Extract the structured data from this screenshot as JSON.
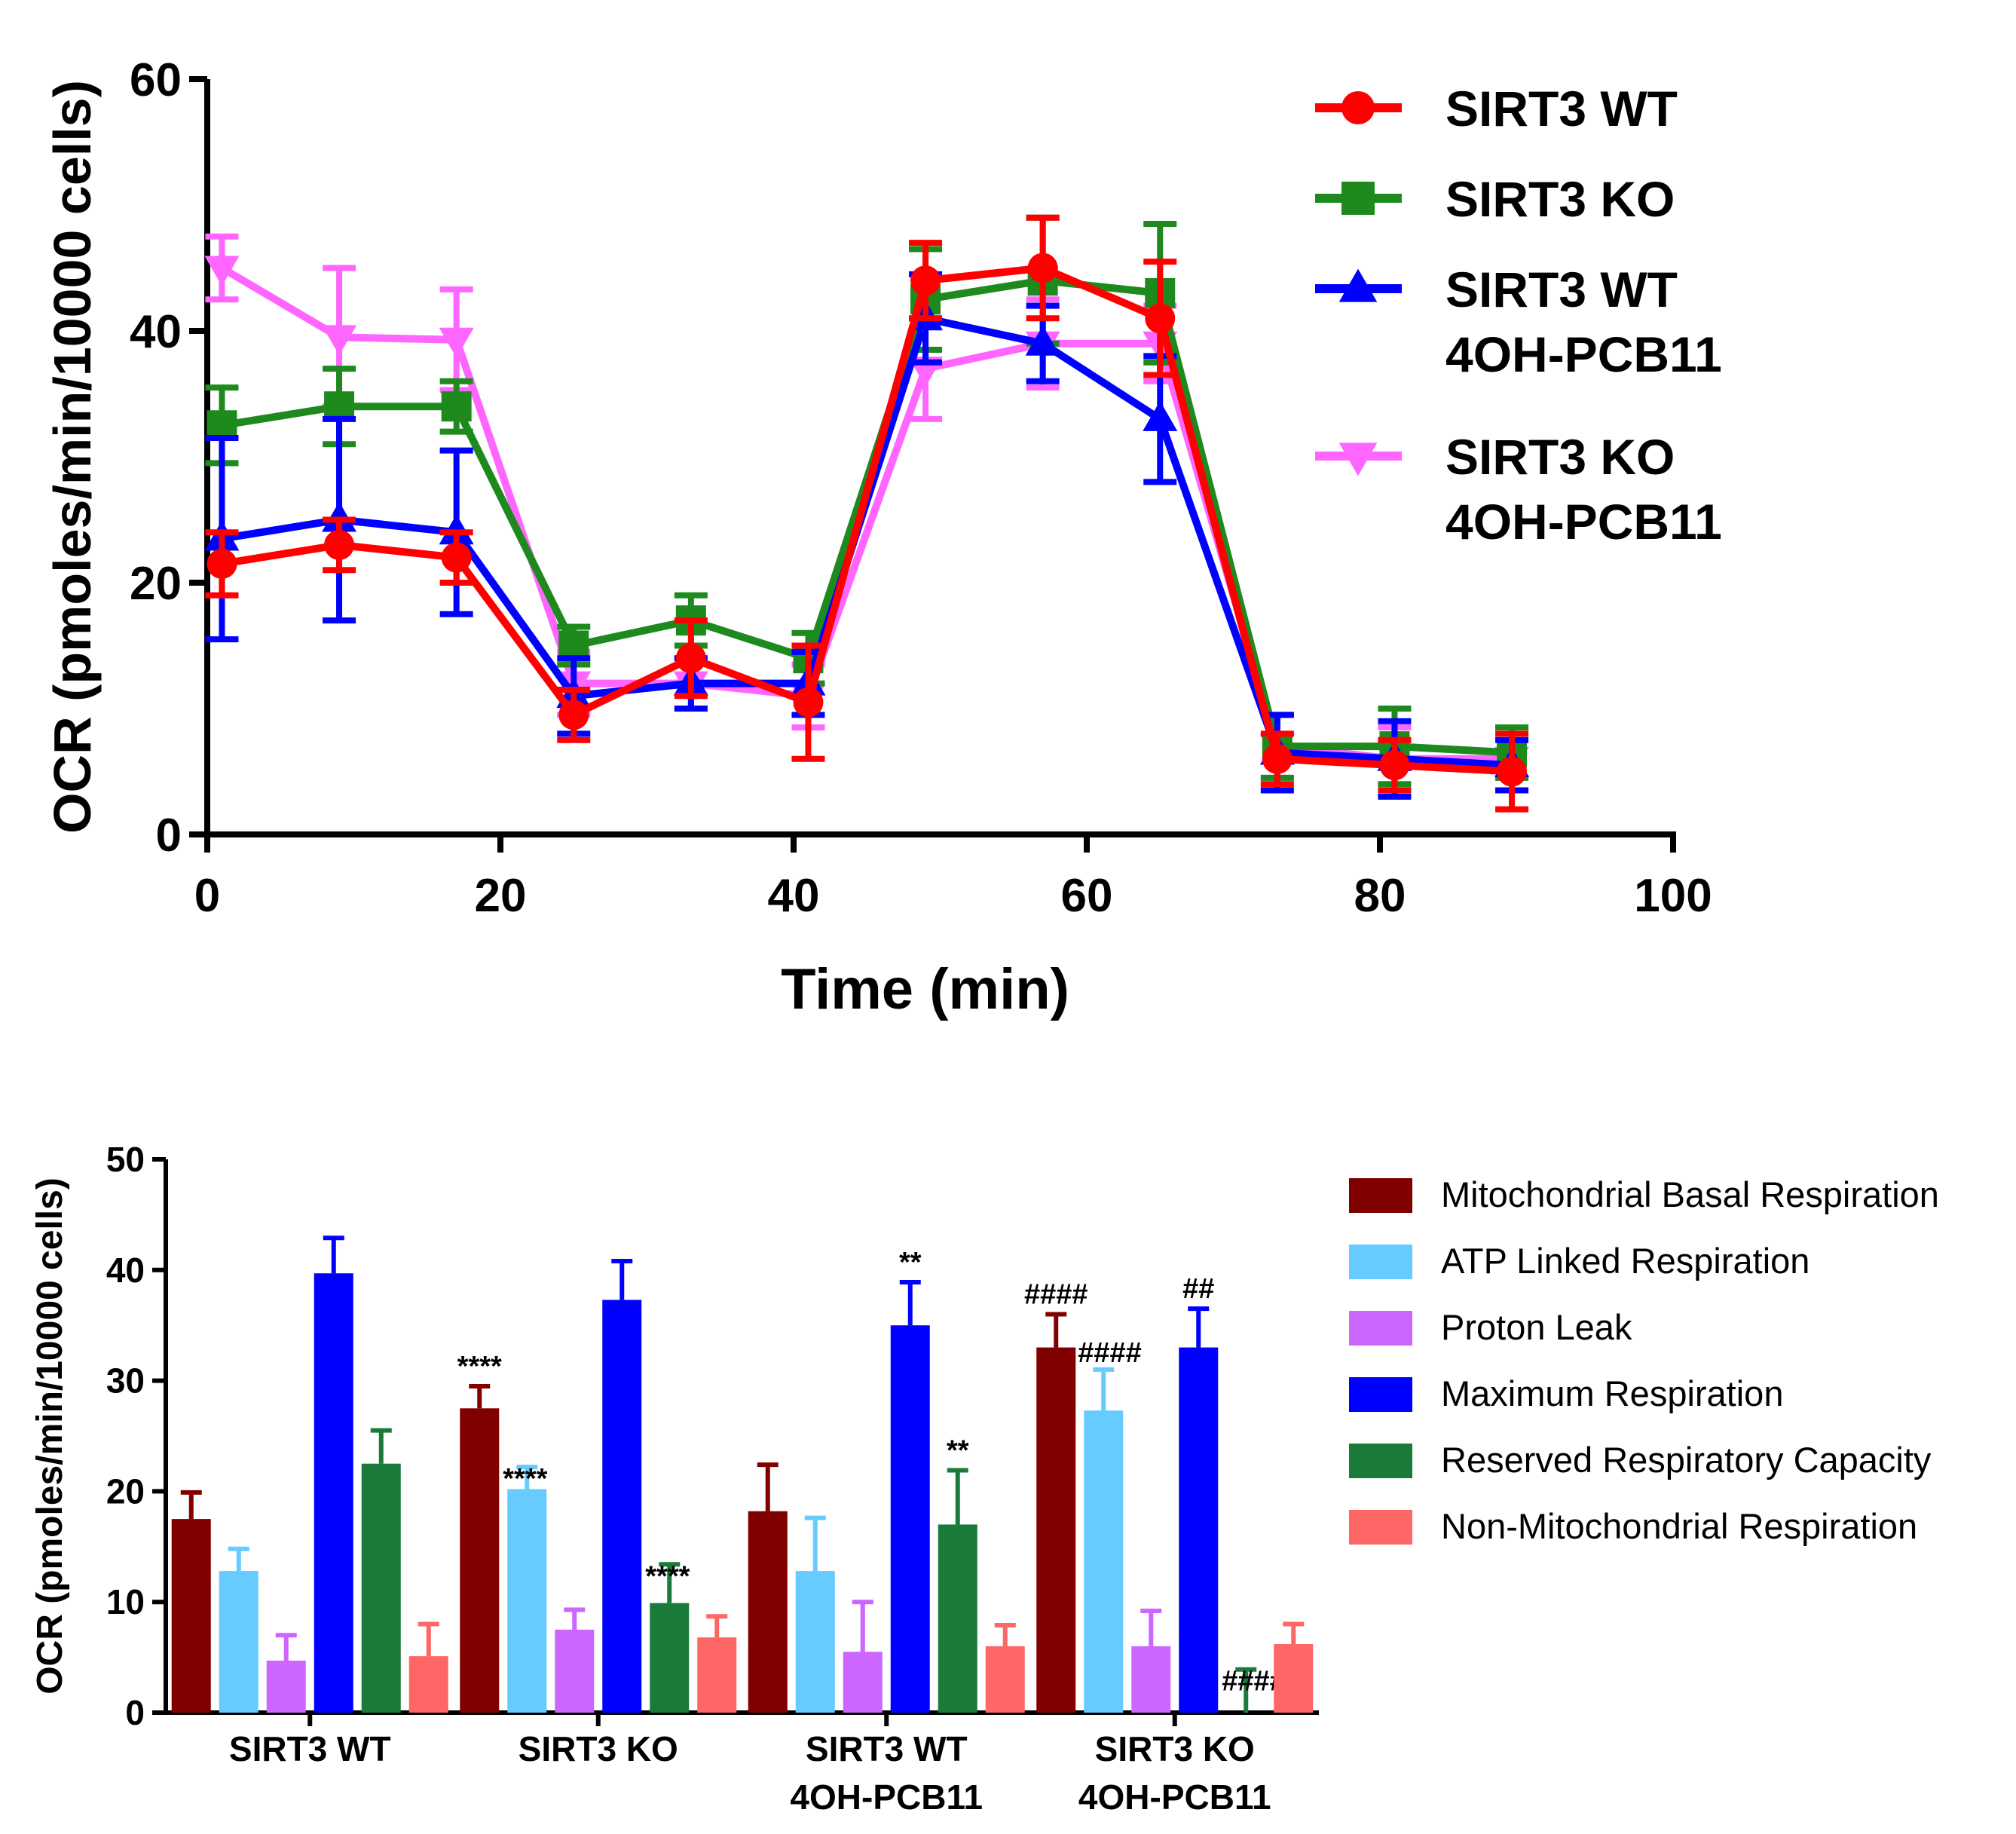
{
  "chart_data": [
    {
      "type": "line",
      "title": "",
      "xlabel": "Time (min)",
      "ylabel": "OCR (pmoles/min/10000 cells)",
      "xlim": [
        0,
        100
      ],
      "ylim": [
        0,
        60
      ],
      "xticks": [
        "0",
        "20",
        "40",
        "60",
        "80",
        "100"
      ],
      "yticks": [
        "0",
        "20",
        "40",
        "60"
      ],
      "x": [
        1,
        9,
        17,
        25,
        33,
        41,
        49,
        57,
        65,
        73,
        81,
        89
      ],
      "legend_position": "top-right",
      "series": [
        {
          "name": "SIRT3 KO",
          "name_line2": "4OH-PCB11",
          "color": "#ff66ff",
          "marker": "triangle-down",
          "values": [
            45,
            39.5,
            39.3,
            12,
            12,
            11,
            37,
            39,
            39,
            7,
            6,
            6
          ],
          "errors": [
            2.5,
            5.5,
            4,
            2.5,
            2,
            2.5,
            4,
            3.5,
            3,
            2.5,
            2.5,
            2.5
          ]
        },
        {
          "name": "SIRT3 KO",
          "name_line2": "",
          "color": "#1e8a1e",
          "marker": "square",
          "values": [
            32.5,
            34,
            34,
            15,
            17,
            14,
            42.5,
            44,
            43,
            7,
            7,
            6.5
          ],
          "errors": [
            3,
            3,
            2,
            1.5,
            2,
            2,
            4,
            5,
            5.5,
            2.5,
            3,
            2
          ]
        },
        {
          "name": "SIRT3 WT",
          "name_line2": "4OH-PCB11",
          "color": "#0000ff",
          "marker": "triangle-up",
          "values": [
            23.5,
            25,
            24,
            11,
            12,
            12,
            41,
            39,
            33,
            6.5,
            6,
            5.5
          ],
          "errors": [
            8,
            8,
            6.5,
            3,
            2,
            2.5,
            3.5,
            3,
            5,
            3,
            3,
            2
          ]
        },
        {
          "name": "SIRT3 WT",
          "name_line2": "",
          "color": "#ff0000",
          "marker": "circle",
          "values": [
            21.5,
            23,
            22,
            9.5,
            14,
            10.5,
            44,
            45,
            41,
            6,
            5.5,
            5
          ],
          "errors": [
            2.5,
            2,
            2,
            2,
            3,
            4.5,
            3,
            4,
            4.5,
            2,
            2,
            3
          ]
        }
      ]
    },
    {
      "type": "bar",
      "title": "",
      "xlabel": "",
      "ylabel": "OCR (pmoles/min/10000 cells)",
      "ylim": [
        0,
        50
      ],
      "yticks": [
        "0",
        "10",
        "20",
        "30",
        "40",
        "50"
      ],
      "categories": [
        {
          "line1": "SIRT3 WT",
          "line2": ""
        },
        {
          "line1": "SIRT3 KO",
          "line2": ""
        },
        {
          "line1": "SIRT3 WT",
          "line2": "4OH-PCB11"
        },
        {
          "line1": "SIRT3 KO",
          "line2": "4OH-PCB11"
        }
      ],
      "legend_position": "right",
      "series": [
        {
          "name": "Mitochondrial Basal Respiration",
          "color": "#800000",
          "values": [
            17.5,
            27.5,
            18.2,
            33
          ],
          "errors": [
            2.4,
            2,
            4.2,
            3
          ],
          "labels": [
            "",
            "****",
            "",
            "####"
          ]
        },
        {
          "name": "ATP Linked Respiration",
          "color": "#66ccff",
          "values": [
            12.8,
            20.2,
            12.8,
            27.3
          ],
          "errors": [
            2,
            2,
            4.8,
            3.7
          ],
          "labels": [
            "",
            "****",
            "",
            "####"
          ]
        },
        {
          "name": "Proton Leak",
          "color": "#cc66ff",
          "values": [
            4.7,
            7.5,
            5.5,
            6
          ],
          "errors": [
            2.3,
            1.8,
            4.5,
            3.2
          ],
          "labels": [
            "",
            "",
            "",
            ""
          ]
        },
        {
          "name": "Maximum Respiration",
          "color": "#0000ff",
          "values": [
            39.7,
            37.3,
            35,
            33
          ],
          "errors": [
            3.2,
            3.5,
            3.9,
            3.5
          ],
          "labels": [
            "",
            "",
            "**",
            "##"
          ]
        },
        {
          "name": "Reserved Respiratory Capacity",
          "color": "#1a7a3a",
          "values": [
            22.5,
            9.9,
            17,
            0
          ],
          "errors": [
            3,
            3.5,
            4.9,
            3.9
          ],
          "labels": [
            "",
            "****",
            "**",
            "####"
          ]
        },
        {
          "name": "Non-Mitochondrial Respiration",
          "color": "#ff6666",
          "values": [
            5.1,
            6.8,
            6,
            6.2
          ],
          "errors": [
            2.9,
            1.9,
            1.9,
            1.8
          ],
          "labels": [
            "",
            "",
            "",
            ""
          ]
        }
      ]
    }
  ]
}
